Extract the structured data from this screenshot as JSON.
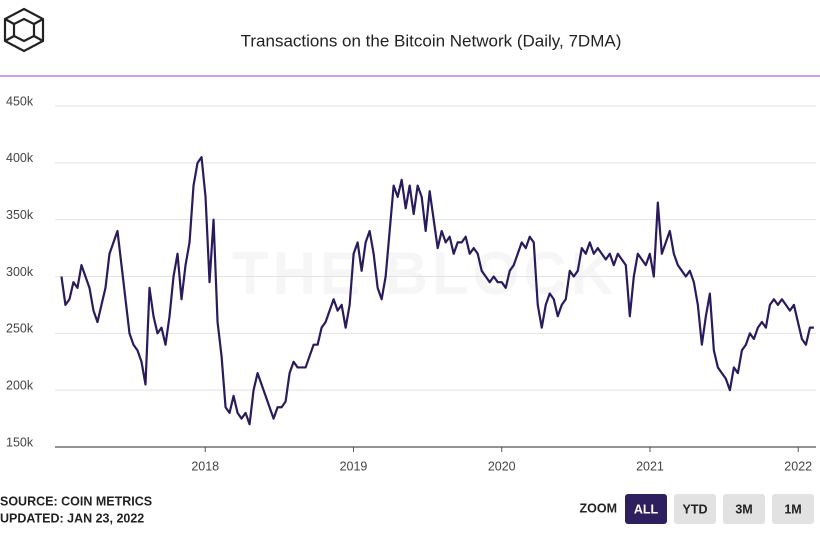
{
  "chart_data": {
    "type": "line",
    "title": "Transactions on the Bitcoin Network (Daily, 7DMA)",
    "watermark": "THE BLOCK",
    "color": "#2b1a5c",
    "grid": true,
    "xlim": [
      2017.0,
      2022.12
    ],
    "xticks": [
      2018,
      2019,
      2020,
      2021,
      2022
    ],
    "ylim": [
      150000,
      450000
    ],
    "yticks": [
      {
        "value": 150000,
        "label": "150k"
      },
      {
        "value": 200000,
        "label": "200k"
      },
      {
        "value": 250000,
        "label": "250k"
      },
      {
        "value": 300000,
        "label": "300k"
      },
      {
        "value": 350000,
        "label": "350k"
      },
      {
        "value": 400000,
        "label": "400k"
      },
      {
        "value": 450000,
        "label": "450k"
      }
    ],
    "x": [
      2017.03,
      2017.057,
      2017.084,
      2017.111,
      2017.138,
      2017.165,
      2017.192,
      2017.219,
      2017.246,
      2017.273,
      2017.3,
      2017.327,
      2017.354,
      2017.381,
      2017.408,
      2017.435,
      2017.462,
      2017.489,
      2017.516,
      2017.543,
      2017.57,
      2017.597,
      2017.624,
      2017.651,
      2017.678,
      2017.705,
      2017.732,
      2017.759,
      2017.786,
      2017.813,
      2017.84,
      2017.867,
      2017.894,
      2017.921,
      2017.948,
      2017.975,
      2018.002,
      2018.029,
      2018.056,
      2018.083,
      2018.11,
      2018.137,
      2018.164,
      2018.191,
      2018.218,
      2018.245,
      2018.272,
      2018.299,
      2018.326,
      2018.353,
      2018.38,
      2018.407,
      2018.434,
      2018.461,
      2018.488,
      2018.515,
      2018.542,
      2018.569,
      2018.596,
      2018.623,
      2018.65,
      2018.677,
      2018.704,
      2018.731,
      2018.758,
      2018.785,
      2018.812,
      2018.839,
      2018.866,
      2018.893,
      2018.92,
      2018.947,
      2018.974,
      2019.001,
      2019.028,
      2019.055,
      2019.082,
      2019.109,
      2019.136,
      2019.163,
      2019.19,
      2019.217,
      2019.244,
      2019.271,
      2019.298,
      2019.325,
      2019.352,
      2019.379,
      2019.406,
      2019.433,
      2019.46,
      2019.487,
      2019.514,
      2019.541,
      2019.568,
      2019.595,
      2019.622,
      2019.649,
      2019.676,
      2019.703,
      2019.73,
      2019.757,
      2019.784,
      2019.811,
      2019.838,
      2019.865,
      2019.892,
      2019.919,
      2019.946,
      2019.973,
      2020.0,
      2020.027,
      2020.054,
      2020.081,
      2020.108,
      2020.135,
      2020.162,
      2020.189,
      2020.216,
      2020.243,
      2020.27,
      2020.297,
      2020.324,
      2020.351,
      2020.378,
      2020.405,
      2020.432,
      2020.459,
      2020.486,
      2020.513,
      2020.54,
      2020.567,
      2020.594,
      2020.621,
      2020.648,
      2020.675,
      2020.702,
      2020.729,
      2020.756,
      2020.783,
      2020.81,
      2020.837,
      2020.864,
      2020.891,
      2020.918,
      2020.945,
      2020.972,
      2020.999,
      2021.026,
      2021.053,
      2021.08,
      2021.107,
      2021.134,
      2021.161,
      2021.188,
      2021.215,
      2021.242,
      2021.269,
      2021.296,
      2021.323,
      2021.35,
      2021.377,
      2021.404,
      2021.431,
      2021.458,
      2021.485,
      2021.512,
      2021.539,
      2021.566,
      2021.593,
      2021.62,
      2021.647,
      2021.674,
      2021.701,
      2021.728,
      2021.755,
      2021.782,
      2021.809,
      2021.836,
      2021.863,
      2021.89,
      2021.917,
      2021.944,
      2021.971,
      2021.998,
      2022.025,
      2022.052,
      2022.079,
      2022.106
    ],
    "values": [
      300000,
      275000,
      280000,
      295000,
      290000,
      310000,
      300000,
      290000,
      270000,
      260000,
      275000,
      290000,
      320000,
      330000,
      340000,
      310000,
      280000,
      250000,
      240000,
      235000,
      225000,
      205000,
      290000,
      265000,
      250000,
      255000,
      240000,
      265000,
      300000,
      320000,
      280000,
      310000,
      330000,
      380000,
      400000,
      405000,
      370000,
      295000,
      350000,
      260000,
      230000,
      185000,
      180000,
      195000,
      180000,
      175000,
      180000,
      170000,
      200000,
      215000,
      205000,
      195000,
      185000,
      175000,
      185000,
      185000,
      190000,
      215000,
      225000,
      220000,
      220000,
      220000,
      230000,
      240000,
      240000,
      255000,
      260000,
      270000,
      280000,
      270000,
      275000,
      255000,
      275000,
      320000,
      330000,
      305000,
      330000,
      340000,
      320000,
      290000,
      280000,
      300000,
      340000,
      380000,
      370000,
      385000,
      360000,
      380000,
      355000,
      380000,
      370000,
      340000,
      375000,
      350000,
      325000,
      340000,
      330000,
      335000,
      320000,
      330000,
      330000,
      335000,
      320000,
      325000,
      320000,
      305000,
      300000,
      295000,
      300000,
      295000,
      295000,
      290000,
      305000,
      310000,
      320000,
      330000,
      325000,
      335000,
      330000,
      275000,
      255000,
      275000,
      285000,
      280000,
      265000,
      275000,
      280000,
      305000,
      300000,
      305000,
      325000,
      320000,
      330000,
      320000,
      325000,
      320000,
      315000,
      320000,
      310000,
      320000,
      315000,
      310000,
      265000,
      300000,
      320000,
      315000,
      310000,
      320000,
      300000,
      365000,
      320000,
      330000,
      340000,
      320000,
      310000,
      305000,
      300000,
      305000,
      295000,
      275000,
      240000,
      265000,
      285000,
      235000,
      220000,
      215000,
      210000,
      200000,
      220000,
      215000,
      235000,
      240000,
      250000,
      245000,
      255000,
      260000,
      255000,
      275000,
      280000,
      275000,
      280000,
      275000,
      270000,
      275000,
      260000,
      245000,
      240000,
      255000,
      255000
    ]
  },
  "source": "SOURCE: COIN METRICS",
  "updated": "UPDATED: JAN 23, 2022",
  "zoom": {
    "label": "ZOOM",
    "buttons": [
      "ALL",
      "YTD",
      "3M",
      "1M"
    ],
    "active": "ALL"
  }
}
